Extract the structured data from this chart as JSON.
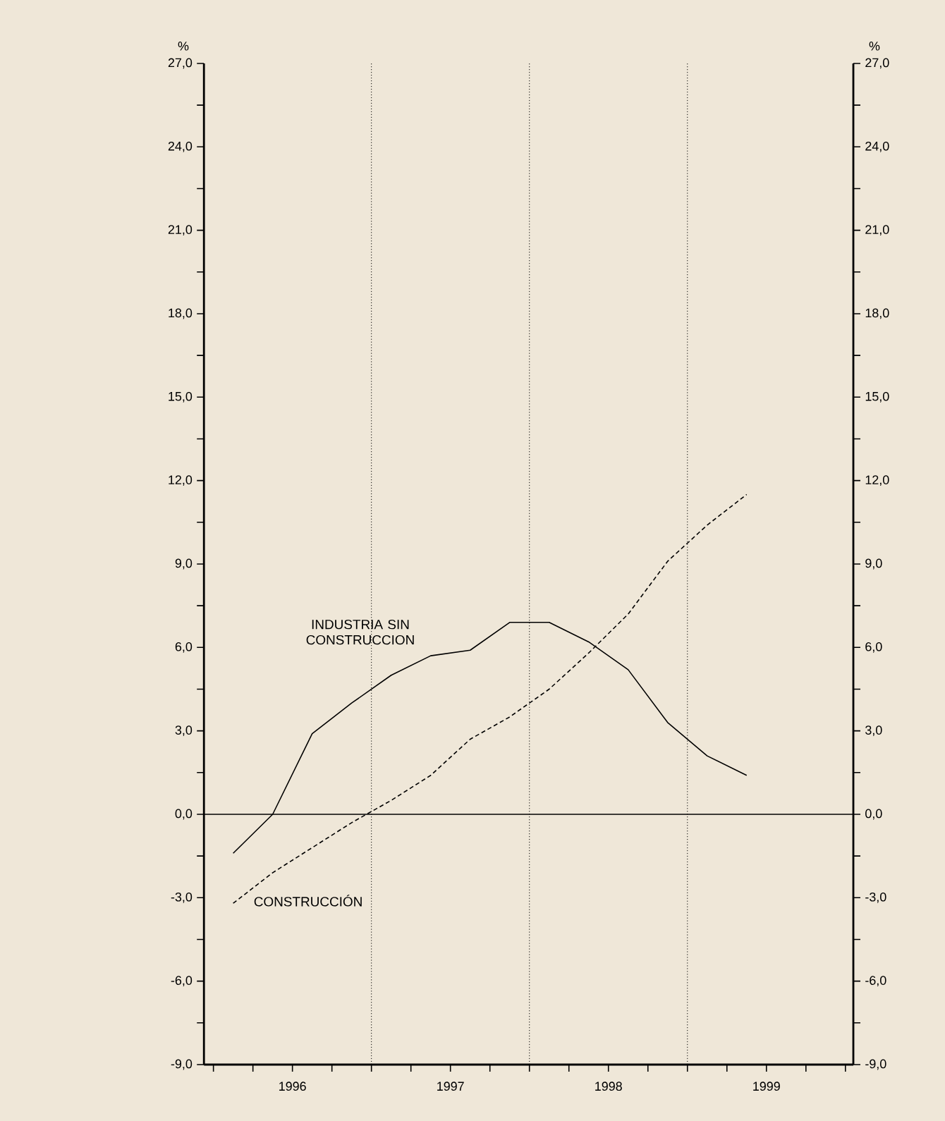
{
  "chart_data": {
    "type": "line",
    "annotations": [
      "%",
      "%"
    ],
    "x": [
      1996.125,
      1996.375,
      1996.625,
      1996.875,
      1997.125,
      1997.375,
      1997.625,
      1997.875,
      1998.125,
      1998.375,
      1998.625,
      1998.875,
      1999.125,
      1999.375
    ],
    "series": [
      {
        "name": "INDUSTRIA SIN CONSTRUCCION",
        "color": "#000000",
        "line_style": "solid",
        "values": [
          -1.4,
          0.0,
          2.9,
          4.0,
          5.0,
          5.7,
          5.9,
          6.9,
          6.9,
          6.2,
          5.2,
          3.3,
          2.1,
          1.4
        ]
      },
      {
        "name": "CONSTRUCCIÓN",
        "color": "#000000",
        "line_style": "dashed",
        "values": [
          -3.2,
          -2.1,
          -1.2,
          -0.3,
          0.5,
          1.4,
          2.7,
          3.5,
          4.5,
          5.8,
          7.2,
          9.1,
          10.4,
          11.5
        ]
      }
    ],
    "xlim": [
      1995.94,
      2000.05
    ],
    "xticks": [
      {
        "value": 1996,
        "label": null
      },
      {
        "value": 1996.25,
        "label": null
      },
      {
        "value": 1996.5,
        "label": "1996"
      },
      {
        "value": 1996.75,
        "label": null
      },
      {
        "value": 1997,
        "label": null
      },
      {
        "value": 1997.25,
        "label": null
      },
      {
        "value": 1997.5,
        "label": "1997"
      },
      {
        "value": 1997.75,
        "label": null
      },
      {
        "value": 1998,
        "label": null
      },
      {
        "value": 1998.25,
        "label": null
      },
      {
        "value": 1998.5,
        "label": "1998"
      },
      {
        "value": 1998.75,
        "label": null
      },
      {
        "value": 1999,
        "label": null
      },
      {
        "value": 1999.25,
        "label": null
      },
      {
        "value": 1999.5,
        "label": "1999"
      },
      {
        "value": 1999.75,
        "label": null
      },
      {
        "value": 2000,
        "label": null
      }
    ],
    "ylim": [
      -9,
      27
    ],
    "yticks": [
      {
        "value": -9,
        "label": "-9,0"
      },
      {
        "value": -7.5,
        "label": null
      },
      {
        "value": -6,
        "label": "-6,0"
      },
      {
        "value": -4.5,
        "label": null
      },
      {
        "value": -3,
        "label": "-3,0"
      },
      {
        "value": -1.5,
        "label": null
      },
      {
        "value": 0,
        "label": "0,0"
      },
      {
        "value": 1.5,
        "label": null
      },
      {
        "value": 3,
        "label": "3,0"
      },
      {
        "value": 4.5,
        "label": null
      },
      {
        "value": 6,
        "label": "6,0"
      },
      {
        "value": 7.5,
        "label": null
      },
      {
        "value": 9,
        "label": "9,0"
      },
      {
        "value": 10.5,
        "label": null
      },
      {
        "value": 12,
        "label": "12,0"
      },
      {
        "value": 13.5,
        "label": null
      },
      {
        "value": 15,
        "label": "15,0"
      },
      {
        "value": 16.5,
        "label": null
      },
      {
        "value": 18,
        "label": "18,0"
      },
      {
        "value": 19.5,
        "label": null
      },
      {
        "value": 21,
        "label": "21,0"
      },
      {
        "value": 22.5,
        "label": null
      },
      {
        "value": 24,
        "label": "24,0"
      },
      {
        "value": 25.5,
        "label": null
      },
      {
        "value": 27,
        "label": "27,0"
      }
    ],
    "y2lim": [
      -9,
      27
    ],
    "y2ticks": [
      {
        "value": -9,
        "label": "-9,0"
      },
      {
        "value": -7.5,
        "label": null
      },
      {
        "value": -6,
        "label": "-6,0"
      },
      {
        "value": -4.5,
        "label": null
      },
      {
        "value": -3,
        "label": "-3,0"
      },
      {
        "value": -1.5,
        "label": null
      },
      {
        "value": 0,
        "label": "0,0"
      },
      {
        "value": 1.5,
        "label": null
      },
      {
        "value": 3,
        "label": "3,0"
      },
      {
        "value": 4.5,
        "label": null
      },
      {
        "value": 6,
        "label": "6,0"
      },
      {
        "value": 7.5,
        "label": null
      },
      {
        "value": 9,
        "label": "9,0"
      },
      {
        "value": 10.5,
        "label": null
      },
      {
        "value": 12,
        "label": "12,0"
      },
      {
        "value": 13.5,
        "label": null
      },
      {
        "value": 15,
        "label": "15,0"
      },
      {
        "value": 16.5,
        "label": null
      },
      {
        "value": 18,
        "label": "18,0"
      },
      {
        "value": 19.5,
        "label": null
      },
      {
        "value": 21,
        "label": "21,0"
      },
      {
        "value": 22.5,
        "label": null
      },
      {
        "value": 24,
        "label": "24,0"
      },
      {
        "value": 25.5,
        "label": null
      },
      {
        "value": 27,
        "label": "27,0"
      }
    ],
    "ref_lines": [
      {
        "axis": "x",
        "value": 1997,
        "color": "#000000",
        "line_style": "dotted"
      },
      {
        "axis": "x",
        "value": 1998,
        "color": "#000000",
        "line_style": "dotted"
      },
      {
        "axis": "x",
        "value": 1999,
        "color": "#000000",
        "line_style": "dotted"
      },
      {
        "axis": "y",
        "value": 0,
        "color": "#000000",
        "line_style": "solid"
      }
    ],
    "grid": false,
    "marker": "none"
  }
}
